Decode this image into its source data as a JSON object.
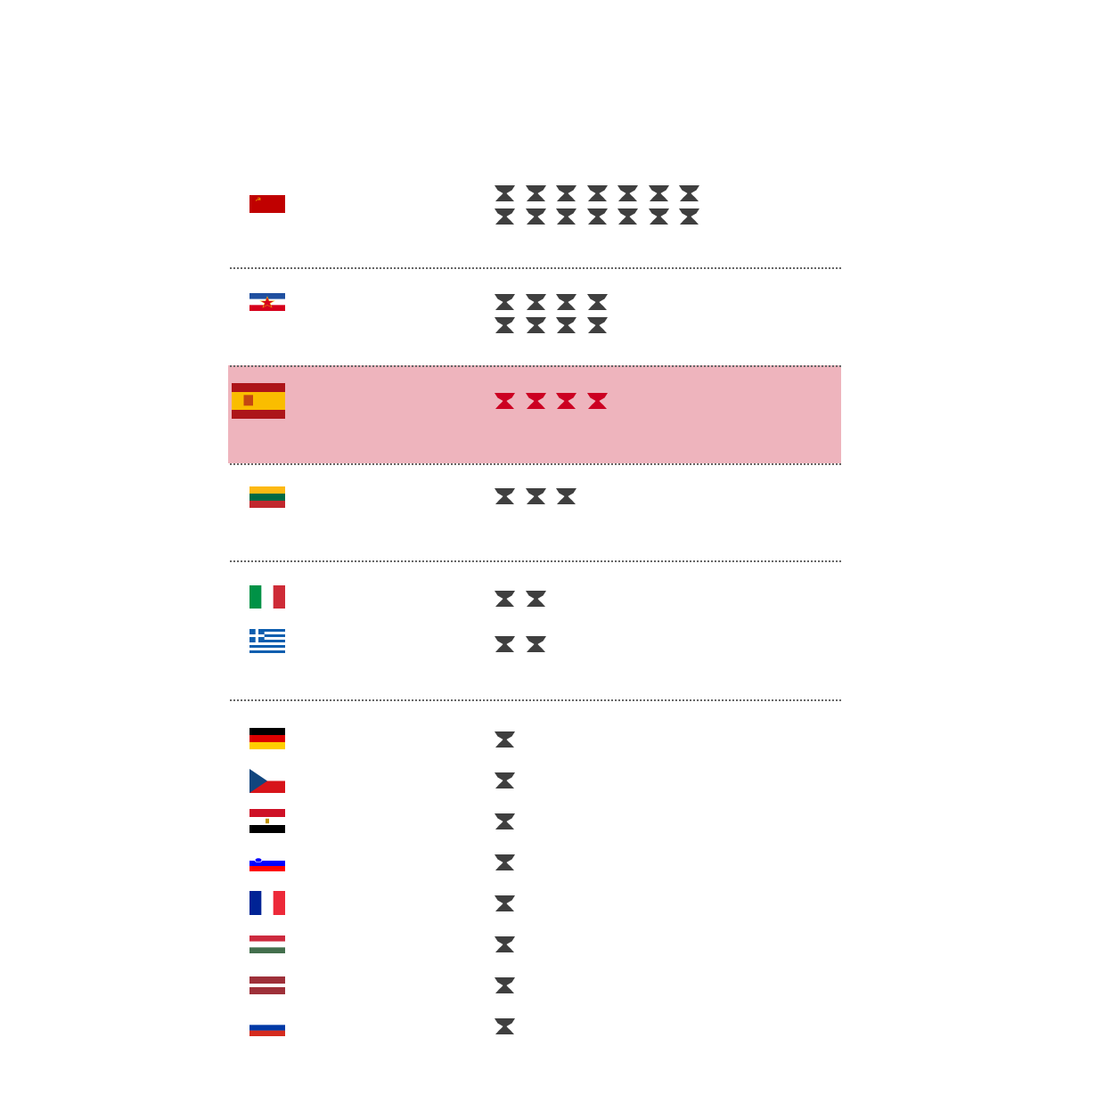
{
  "chart_data": {
    "type": "pictogram",
    "icon": "trophy-icon",
    "colors": {
      "default_icon": "#3f3f3f",
      "highlight_icon": "#cc0022",
      "highlight_band": "#eeb4bd",
      "divider": "#666666"
    },
    "highlighted": "spain",
    "groups": [
      {
        "value": 14,
        "countries": [
          {
            "flag": "soviet-union",
            "value": 14
          }
        ]
      },
      {
        "value": 8,
        "countries": [
          {
            "flag": "yugoslavia",
            "value": 8
          }
        ]
      },
      {
        "value": 4,
        "countries": [
          {
            "flag": "spain",
            "value": 4
          }
        ]
      },
      {
        "value": 3,
        "countries": [
          {
            "flag": "lithuania",
            "value": 3
          }
        ]
      },
      {
        "value": 2,
        "countries": [
          {
            "flag": "italy",
            "value": 2
          },
          {
            "flag": "greece",
            "value": 2
          }
        ]
      },
      {
        "value": 1,
        "countries": [
          {
            "flag": "germany",
            "value": 1
          },
          {
            "flag": "czechoslovakia",
            "value": 1
          },
          {
            "flag": "egypt",
            "value": 1
          },
          {
            "flag": "slovenia",
            "value": 1
          },
          {
            "flag": "france",
            "value": 1
          },
          {
            "flag": "hungary",
            "value": 1
          },
          {
            "flag": "latvia",
            "value": 1
          },
          {
            "flag": "russia",
            "value": 1
          }
        ]
      }
    ]
  }
}
